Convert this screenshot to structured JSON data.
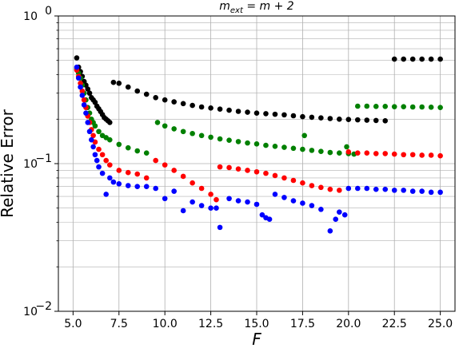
{
  "chart_data": {
    "type": "scatter",
    "title": "m_ext = m + 2",
    "title_parts": {
      "main": "m",
      "sub": "ext",
      "rest": " = m + 2"
    },
    "xlabel": "F",
    "ylabel": "Relative Error",
    "xlim": [
      4.2,
      25.8
    ],
    "ylim": [
      0.01,
      1.0
    ],
    "yscale": "log",
    "grid": true,
    "x_ticks": [
      5.0,
      7.5,
      10.0,
      12.5,
      15.0,
      17.5,
      20.0,
      22.5,
      25.0
    ],
    "x_tick_labels": [
      "5.0",
      "7.5",
      "10.0",
      "12.5",
      "15.0",
      "17.5",
      "20.0",
      "22.5",
      "25.0"
    ],
    "y_ticks": [
      0.01,
      0.1,
      1.0
    ],
    "y_tick_labels": [
      {
        "base": "10",
        "exp": "−2"
      },
      {
        "base": "10",
        "exp": "−1"
      },
      {
        "base": "10",
        "exp": "0"
      }
    ],
    "series": [
      {
        "color": "#000000",
        "points": [
          [
            5.2,
            0.52
          ],
          [
            5.3,
            0.45
          ],
          [
            5.4,
            0.42
          ],
          [
            5.5,
            0.39
          ],
          [
            5.6,
            0.36
          ],
          [
            5.7,
            0.34
          ],
          [
            5.8,
            0.32
          ],
          [
            5.9,
            0.3
          ],
          [
            6.0,
            0.28
          ],
          [
            6.1,
            0.27
          ],
          [
            6.2,
            0.26
          ],
          [
            6.3,
            0.245
          ],
          [
            6.4,
            0.235
          ],
          [
            6.5,
            0.225
          ],
          [
            6.6,
            0.215
          ],
          [
            6.7,
            0.205
          ],
          [
            6.8,
            0.2
          ],
          [
            6.9,
            0.195
          ],
          [
            7.0,
            0.19
          ],
          [
            7.2,
            0.355
          ],
          [
            7.5,
            0.35
          ],
          [
            8.0,
            0.33
          ],
          [
            8.5,
            0.31
          ],
          [
            9.0,
            0.295
          ],
          [
            9.5,
            0.28
          ],
          [
            10.0,
            0.27
          ],
          [
            10.5,
            0.262
          ],
          [
            11.0,
            0.255
          ],
          [
            11.5,
            0.248
          ],
          [
            12.0,
            0.242
          ],
          [
            12.5,
            0.238
          ],
          [
            13.0,
            0.234
          ],
          [
            13.5,
            0.23
          ],
          [
            14.0,
            0.226
          ],
          [
            14.5,
            0.223
          ],
          [
            15.0,
            0.22
          ],
          [
            15.5,
            0.218
          ],
          [
            16.0,
            0.216
          ],
          [
            16.5,
            0.214
          ],
          [
            17.0,
            0.211
          ],
          [
            17.5,
            0.208
          ],
          [
            18.0,
            0.206
          ],
          [
            18.5,
            0.204
          ],
          [
            19.0,
            0.202
          ],
          [
            19.5,
            0.2
          ],
          [
            20.0,
            0.199
          ],
          [
            20.5,
            0.198
          ],
          [
            21.0,
            0.197
          ],
          [
            21.5,
            0.196
          ],
          [
            22.0,
            0.195
          ],
          [
            22.5,
            0.51
          ],
          [
            23.0,
            0.51
          ],
          [
            23.5,
            0.51
          ],
          [
            24.0,
            0.51
          ],
          [
            24.5,
            0.51
          ],
          [
            25.0,
            0.51
          ]
        ]
      },
      {
        "color": "#008000",
        "points": [
          [
            5.2,
            0.44
          ],
          [
            5.3,
            0.41
          ],
          [
            5.4,
            0.38
          ],
          [
            5.5,
            0.34
          ],
          [
            5.6,
            0.3
          ],
          [
            5.7,
            0.27
          ],
          [
            5.8,
            0.24
          ],
          [
            5.9,
            0.22
          ],
          [
            6.0,
            0.2
          ],
          [
            6.1,
            0.19
          ],
          [
            6.2,
            0.18
          ],
          [
            6.4,
            0.165
          ],
          [
            6.6,
            0.155
          ],
          [
            6.8,
            0.15
          ],
          [
            7.0,
            0.145
          ],
          [
            7.5,
            0.135
          ],
          [
            8.0,
            0.128
          ],
          [
            8.5,
            0.122
          ],
          [
            9.0,
            0.118
          ],
          [
            9.6,
            0.19
          ],
          [
            10.0,
            0.18
          ],
          [
            10.5,
            0.172
          ],
          [
            11.0,
            0.165
          ],
          [
            11.5,
            0.16
          ],
          [
            12.0,
            0.155
          ],
          [
            12.5,
            0.151
          ],
          [
            13.0,
            0.147
          ],
          [
            13.5,
            0.144
          ],
          [
            14.0,
            0.141
          ],
          [
            14.5,
            0.138
          ],
          [
            15.0,
            0.136
          ],
          [
            15.5,
            0.133
          ],
          [
            16.0,
            0.131
          ],
          [
            16.5,
            0.129
          ],
          [
            17.0,
            0.127
          ],
          [
            17.5,
            0.125
          ],
          [
            17.6,
            0.155
          ],
          [
            18.0,
            0.123
          ],
          [
            18.5,
            0.121
          ],
          [
            19.0,
            0.119
          ],
          [
            19.5,
            0.118
          ],
          [
            19.9,
            0.13
          ],
          [
            20.0,
            0.117
          ],
          [
            20.3,
            0.116
          ],
          [
            20.5,
            0.245
          ],
          [
            21.0,
            0.245
          ],
          [
            21.5,
            0.244
          ],
          [
            22.0,
            0.244
          ],
          [
            22.5,
            0.243
          ],
          [
            23.0,
            0.243
          ],
          [
            23.5,
            0.242
          ],
          [
            24.0,
            0.242
          ],
          [
            24.5,
            0.241
          ],
          [
            25.0,
            0.24
          ]
        ]
      },
      {
        "color": "#ff0000",
        "points": [
          [
            5.2,
            0.43
          ],
          [
            5.3,
            0.39
          ],
          [
            5.4,
            0.35
          ],
          [
            5.5,
            0.31
          ],
          [
            5.6,
            0.27
          ],
          [
            5.7,
            0.24
          ],
          [
            5.8,
            0.21
          ],
          [
            5.9,
            0.19
          ],
          [
            6.0,
            0.17
          ],
          [
            6.1,
            0.155
          ],
          [
            6.2,
            0.14
          ],
          [
            6.4,
            0.125
          ],
          [
            6.6,
            0.115
          ],
          [
            6.8,
            0.105
          ],
          [
            7.0,
            0.098
          ],
          [
            7.5,
            0.09
          ],
          [
            8.0,
            0.087
          ],
          [
            8.5,
            0.085
          ],
          [
            9.0,
            0.08
          ],
          [
            9.5,
            0.105
          ],
          [
            10.0,
            0.098
          ],
          [
            10.5,
            0.09
          ],
          [
            11.0,
            0.082
          ],
          [
            11.5,
            0.074
          ],
          [
            12.0,
            0.068
          ],
          [
            12.5,
            0.062
          ],
          [
            12.8,
            0.057
          ],
          [
            13.0,
            0.095
          ],
          [
            13.5,
            0.094
          ],
          [
            14.0,
            0.092
          ],
          [
            14.5,
            0.09
          ],
          [
            15.0,
            0.088
          ],
          [
            15.5,
            0.086
          ],
          [
            16.0,
            0.083
          ],
          [
            16.5,
            0.08
          ],
          [
            17.0,
            0.077
          ],
          [
            17.5,
            0.074
          ],
          [
            18.0,
            0.071
          ],
          [
            18.5,
            0.069
          ],
          [
            19.0,
            0.067
          ],
          [
            19.5,
            0.066
          ],
          [
            20.0,
            0.12
          ],
          [
            20.5,
            0.118
          ],
          [
            21.0,
            0.118
          ],
          [
            21.5,
            0.117
          ],
          [
            22.0,
            0.117
          ],
          [
            22.5,
            0.116
          ],
          [
            23.0,
            0.115
          ],
          [
            23.5,
            0.115
          ],
          [
            24.0,
            0.114
          ],
          [
            24.5,
            0.114
          ],
          [
            25.0,
            0.113
          ]
        ]
      },
      {
        "color": "#0000ff",
        "points": [
          [
            5.2,
            0.45
          ],
          [
            5.3,
            0.38
          ],
          [
            5.4,
            0.33
          ],
          [
            5.5,
            0.29
          ],
          [
            5.6,
            0.25
          ],
          [
            5.7,
            0.22
          ],
          [
            5.8,
            0.19
          ],
          [
            5.9,
            0.165
          ],
          [
            6.0,
            0.145
          ],
          [
            6.1,
            0.13
          ],
          [
            6.2,
            0.115
          ],
          [
            6.3,
            0.105
          ],
          [
            6.4,
            0.095
          ],
          [
            6.6,
            0.086
          ],
          [
            6.8,
            0.062
          ],
          [
            7.0,
            0.08
          ],
          [
            7.2,
            0.075
          ],
          [
            7.5,
            0.073
          ],
          [
            8.0,
            0.071
          ],
          [
            8.5,
            0.07
          ],
          [
            9.0,
            0.07
          ],
          [
            9.5,
            0.068
          ],
          [
            10.0,
            0.058
          ],
          [
            10.5,
            0.065
          ],
          [
            11.0,
            0.048
          ],
          [
            11.5,
            0.055
          ],
          [
            12.0,
            0.052
          ],
          [
            12.5,
            0.05
          ],
          [
            12.8,
            0.05
          ],
          [
            13.0,
            0.037
          ],
          [
            13.5,
            0.058
          ],
          [
            14.0,
            0.056
          ],
          [
            14.5,
            0.055
          ],
          [
            15.0,
            0.053
          ],
          [
            15.3,
            0.045
          ],
          [
            15.5,
            0.043
          ],
          [
            15.7,
            0.042
          ],
          [
            16.0,
            0.062
          ],
          [
            16.5,
            0.059
          ],
          [
            17.0,
            0.056
          ],
          [
            17.5,
            0.054
          ],
          [
            18.0,
            0.052
          ],
          [
            18.5,
            0.049
          ],
          [
            19.0,
            0.035
          ],
          [
            19.3,
            0.042
          ],
          [
            19.5,
            0.047
          ],
          [
            19.8,
            0.045
          ],
          [
            20.0,
            0.068
          ],
          [
            20.5,
            0.068
          ],
          [
            21.0,
            0.068
          ],
          [
            21.5,
            0.067
          ],
          [
            22.0,
            0.067
          ],
          [
            22.5,
            0.066
          ],
          [
            23.0,
            0.066
          ],
          [
            23.5,
            0.065
          ],
          [
            24.0,
            0.065
          ],
          [
            24.5,
            0.064
          ],
          [
            25.0,
            0.064
          ]
        ]
      }
    ]
  }
}
